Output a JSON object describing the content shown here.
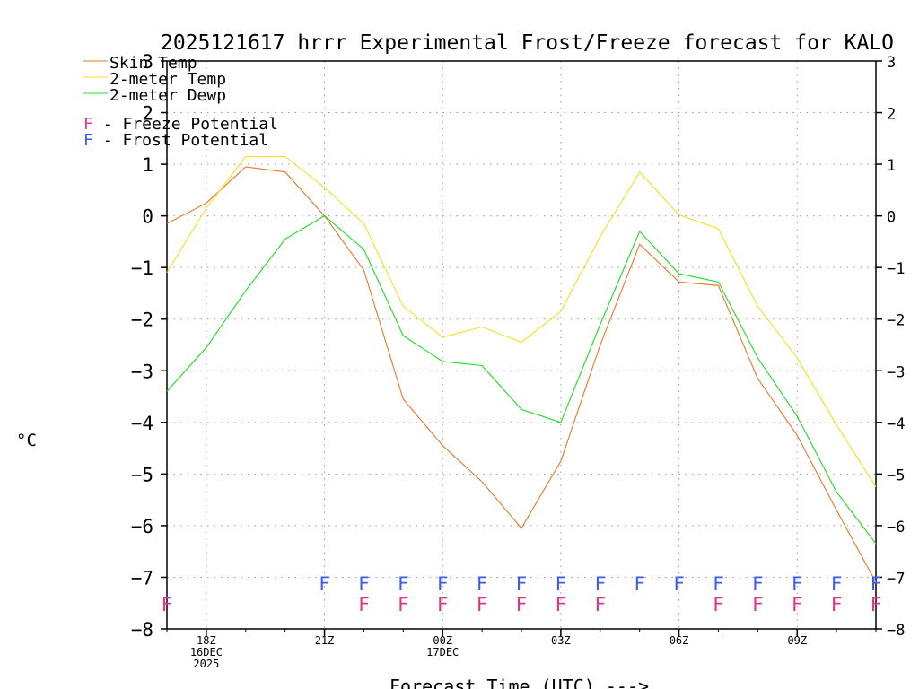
{
  "chart_data": {
    "type": "line",
    "title": "2025121617 hrrr Experimental Frost/Freeze forecast for KALO",
    "ylabel": "°C",
    "xlabel": "Forecast Time (UTC) --->",
    "ylim": [
      -8,
      3
    ],
    "yticks": [
      -8,
      -7,
      -6,
      -5,
      -4,
      -3,
      -2,
      -1,
      0,
      1,
      2,
      3
    ],
    "ytick_labels": [
      "−8",
      "−7",
      "−6",
      "−5",
      "−4",
      "−3",
      "−2",
      "−1",
      "0",
      "1",
      "2",
      "3"
    ],
    "x_hours": [
      17,
      18,
      19,
      20,
      21,
      22,
      23,
      24,
      25,
      26,
      27,
      28,
      29,
      30,
      31,
      32,
      33,
      34,
      35
    ],
    "xlim": [
      17,
      35
    ],
    "xticks": [
      {
        "hour": 18,
        "lines": [
          "18Z",
          "16DEC",
          "2025"
        ]
      },
      {
        "hour": 21,
        "lines": [
          "21Z"
        ]
      },
      {
        "hour": 24,
        "lines": [
          "00Z",
          "17DEC"
        ]
      },
      {
        "hour": 27,
        "lines": [
          "03Z"
        ]
      },
      {
        "hour": 30,
        "lines": [
          "06Z"
        ]
      },
      {
        "hour": 33,
        "lines": [
          "09Z"
        ]
      }
    ],
    "grid": true,
    "series": [
      {
        "name": "Skin Temp",
        "color": "#e8762a",
        "values": [
          -0.15,
          0.25,
          0.95,
          0.85,
          0.0,
          -1.05,
          -3.55,
          -4.45,
          -5.15,
          -6.05,
          -4.75,
          -2.5,
          -0.55,
          -1.28,
          -1.35,
          -3.15,
          -4.25,
          -5.7,
          -7.1
        ]
      },
      {
        "name": "2-meter Temp",
        "color": "#f0e020",
        "values": [
          -1.1,
          0.15,
          1.15,
          1.15,
          0.55,
          -0.15,
          -1.75,
          -2.35,
          -2.15,
          -2.45,
          -1.85,
          -0.4,
          0.85,
          0.02,
          -0.25,
          -1.75,
          -2.75,
          -4.05,
          -5.25
        ]
      },
      {
        "name": "2-meter Dewp",
        "color": "#1fdc1f",
        "values": [
          -3.4,
          -2.55,
          -1.45,
          -0.45,
          0.0,
          -0.65,
          -2.32,
          -2.82,
          -2.9,
          -3.75,
          -4.0,
          -2.1,
          -0.3,
          -1.12,
          -1.28,
          -2.75,
          -3.88,
          -5.35,
          -6.35
        ]
      }
    ],
    "legend": {
      "position": "top-left",
      "series_labels": [
        "Skin Temp",
        "2-meter Temp",
        "2-meter Dewp"
      ],
      "freeze_symbol": "F",
      "freeze_label": " - Freeze Potential",
      "freeze_color": "#e0338a",
      "frost_symbol": "F",
      "frost_label": " - Frost Potential",
      "frost_color": "#3a5cf0"
    },
    "frost_potential_hours": [
      21,
      22,
      23,
      24,
      25,
      26,
      27,
      28,
      29,
      30,
      31,
      32,
      33,
      34,
      35
    ],
    "freeze_potential_hours": [
      17,
      22,
      23,
      24,
      25,
      26,
      27,
      28,
      31,
      32,
      33,
      34,
      35
    ]
  }
}
